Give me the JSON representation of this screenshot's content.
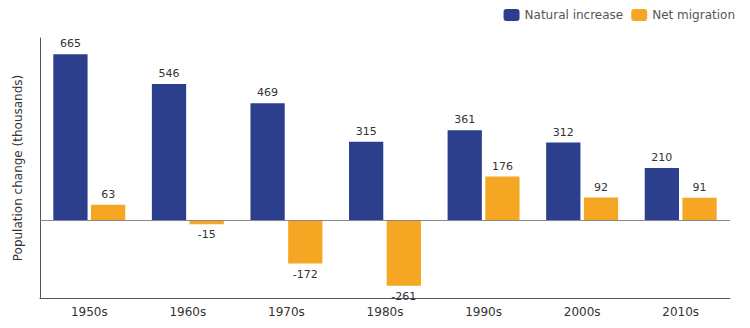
{
  "chart_data": {
    "type": "bar",
    "categories": [
      "1950s",
      "1960s",
      "1970s",
      "1980s",
      "1990s",
      "2000s",
      "2010s"
    ],
    "series": [
      {
        "name": "Natural increase",
        "color": "#2B3F8C",
        "values": [
          665,
          546,
          469,
          315,
          361,
          312,
          210
        ]
      },
      {
        "name": "Net migration",
        "color": "#F5A623",
        "values": [
          63,
          -15,
          -172,
          -261,
          176,
          92,
          91
        ]
      }
    ],
    "ylabel": "Population change (thousands)",
    "ylim": [
      -310,
      730
    ],
    "yticks": [],
    "tick_labels": "x",
    "data_labels": true,
    "legend": "upper right",
    "grid": false
  }
}
